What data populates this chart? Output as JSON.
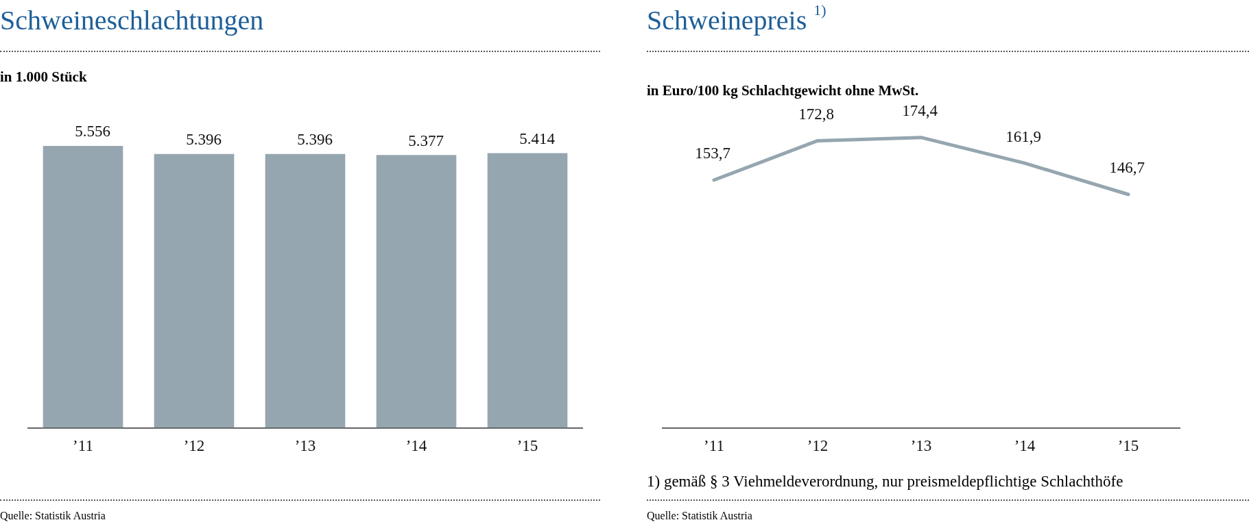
{
  "chart_data": [
    {
      "type": "bar",
      "title": "Schweineschlachtungen",
      "subtitle": "in 1.000 Stück",
      "categories": [
        "’11",
        "’12",
        "’13",
        "’14",
        "’15"
      ],
      "values": [
        5556,
        5396,
        5396,
        5377,
        5414
      ],
      "value_labels": [
        "5.556",
        "5.396",
        "5.396",
        "5.377",
        "5.414"
      ],
      "color": "#95a6b0",
      "legend": false,
      "grid": false,
      "annotations": [
        "Quelle: Statistik Austria"
      ]
    },
    {
      "type": "line",
      "title": "Schweinepreis $^{1)}$",
      "subtitle": "in Euro/100 kg Schlachtgewicht ohne MwSt.",
      "categories": [
        "’11",
        "’12",
        "’13",
        "’14",
        "’15"
      ],
      "values": [
        153.7,
        172.8,
        174.4,
        161.9,
        146.7
      ],
      "value_labels": [
        "153,7",
        "172,8",
        "174,4",
        "161,9",
        "146,7"
      ],
      "color": "#95a6b0",
      "line_style": "solid",
      "marker": "none",
      "legend": false,
      "grid": false,
      "annotations": [
        "1) gemäß § 3 Viehmeldeverordnung, nur preismeldepflichtige Schlachthöfe",
        "Quelle: Statistik Austria"
      ]
    }
  ]
}
